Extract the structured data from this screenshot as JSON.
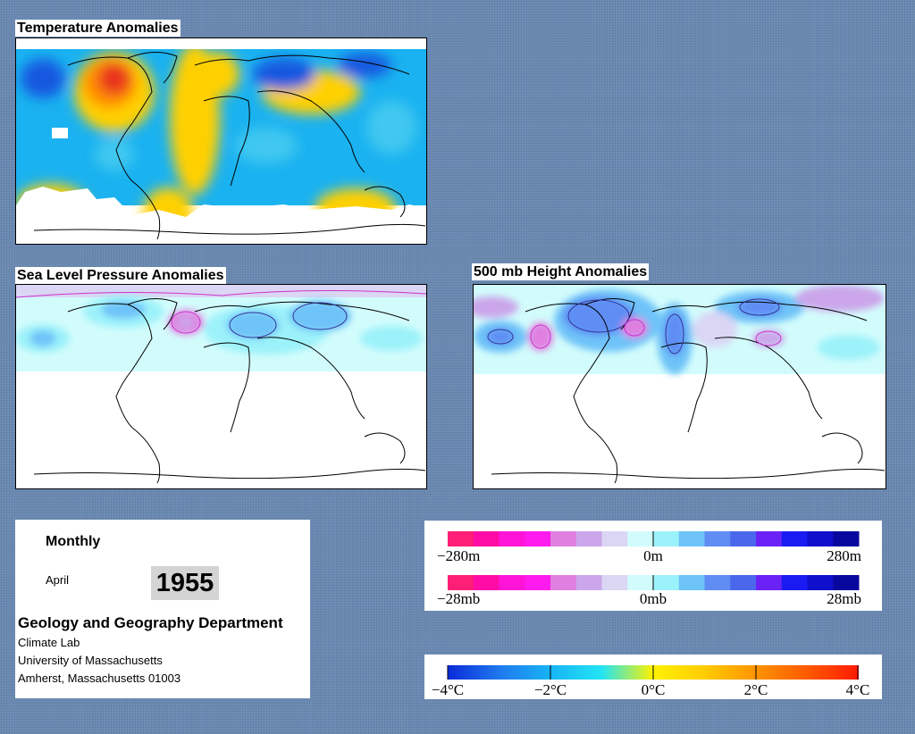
{
  "temperature": {
    "title": "Temperature Anomalies"
  },
  "slp": {
    "title": "Sea Level Pressure Anomalies"
  },
  "height500": {
    "title": "500 mb Height Anomalies"
  },
  "info": {
    "period": "Monthly",
    "month": "April",
    "year": "1955",
    "department": "Geology and Geography Department",
    "lines": [
      "Climate Lab",
      "University of Massachusetts",
      "Amherst, Massachusetts 01003"
    ]
  },
  "legend_height": {
    "labels": [
      "−280m",
      "0m",
      "280m"
    ],
    "colors": [
      "#ff1f76",
      "#ff0ca6",
      "#ff14d8",
      "#ff1aee",
      "#e07fe0",
      "#cba6ea",
      "#dad6f4",
      "#d2fcfc",
      "#9cf2fa",
      "#6ec3f8",
      "#5f8df4",
      "#4b68ec",
      "#6a22f6",
      "#1a1af2",
      "#0f0fcc",
      "#08089e"
    ]
  },
  "legend_slp": {
    "labels": [
      "−28mb",
      "0mb",
      "28mb"
    ],
    "colors": [
      "#ff1f76",
      "#ff0ca6",
      "#ff14d8",
      "#ff1aee",
      "#e07fe0",
      "#cba6ea",
      "#dad6f4",
      "#d2fcfc",
      "#9cf2fa",
      "#6ec3f8",
      "#5f8df4",
      "#4b68ec",
      "#6a22f6",
      "#1a1af2",
      "#0f0fcc",
      "#08089e"
    ]
  },
  "legend_temp": {
    "labels": [
      "−4°C",
      "−2°C",
      "0°C",
      "2°C",
      "4°C"
    ],
    "gradient": [
      "#0a2ad8",
      "#1f78ee",
      "#18b4f4",
      "#22e4f4",
      "#fff200",
      "#ffcc00",
      "#ff9400",
      "#ff5a00",
      "#ff1a00"
    ]
  }
}
